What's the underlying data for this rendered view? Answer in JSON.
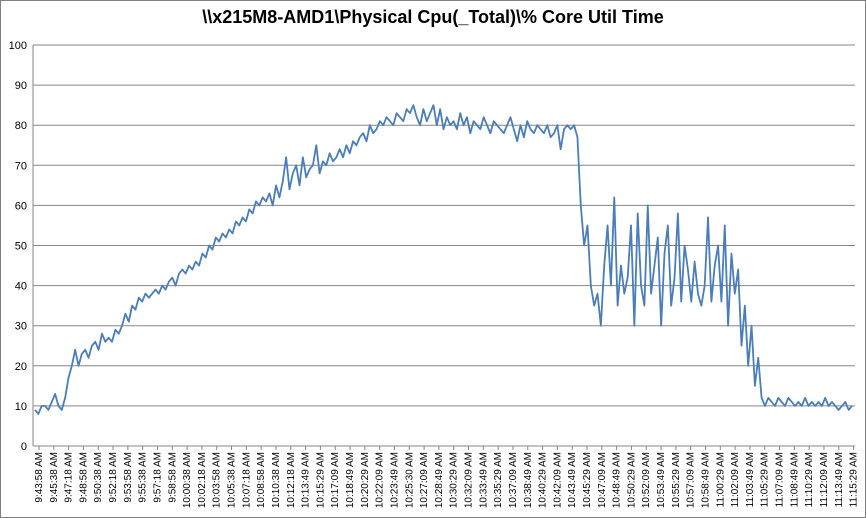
{
  "chart_data": {
    "type": "line",
    "title": "\\\\x215M8-AMD1\\Physical Cpu(_Total)\\% Core Util Time",
    "xlabel": "",
    "ylabel": "",
    "ylim": [
      0,
      100
    ],
    "yticks": [
      0,
      10,
      20,
      30,
      40,
      50,
      60,
      70,
      80,
      90,
      100
    ],
    "grid": true,
    "colors": {
      "line": "#4a7ebb",
      "grid": "#868686",
      "axis": "#868686"
    },
    "xtick_labels": [
      "9:43:58 AM",
      "9:45:38 AM",
      "9:47:18 AM",
      "9:48:58 AM",
      "9:50:38 AM",
      "9:52:18 AM",
      "9:53:58 AM",
      "9:55:38 AM",
      "9:57:18 AM",
      "9:58:58 AM",
      "10:00:38 AM",
      "10:02:18 AM",
      "10:03:58 AM",
      "10:05:38 AM",
      "10:07:18 AM",
      "10:08:58 AM",
      "10:10:38 AM",
      "10:12:18 AM",
      "10:13:49 AM",
      "10:15:29 AM",
      "10:17:09 AM",
      "10:18:49 AM",
      "10:20:29 AM",
      "10:22:09 AM",
      "10:23:49 AM",
      "10:25:30 AM",
      "10:27:09 AM",
      "10:28:49 AM",
      "10:30:29 AM",
      "10:32:09 AM",
      "10:33:49 AM",
      "10:35:29 AM",
      "10:37:09 AM",
      "10:38:49 AM",
      "10:40:29 AM",
      "10:42:09 AM",
      "10:43:49 AM",
      "10:45:29 AM",
      "10:47:09 AM",
      "10:48:49 AM",
      "10:50:29 AM",
      "10:52:09 AM",
      "10:53:49 AM",
      "10:55:29 AM",
      "10:57:09 AM",
      "10:58:49 AM",
      "11:00:29 AM",
      "11:02:09 AM",
      "11:03:49 AM",
      "11:05:29 AM",
      "11:07:09 AM",
      "11:08:49 AM",
      "11:10:29 AM",
      "11:12:09 AM",
      "11:13:49 AM",
      "11:15:29 AM"
    ],
    "series": [
      {
        "values": [
          9,
          8,
          10,
          10,
          9,
          11,
          13,
          10,
          9,
          12,
          17,
          20,
          24,
          20,
          23,
          24,
          22,
          25,
          26,
          24,
          28,
          26,
          27,
          26,
          29,
          28,
          30,
          33,
          31,
          35,
          34,
          37,
          36,
          38,
          37,
          38,
          39,
          38,
          40,
          39,
          41,
          42,
          40,
          43,
          44,
          43,
          45,
          44,
          46,
          45,
          48,
          47,
          50,
          49,
          52,
          51,
          53,
          52,
          54,
          53,
          56,
          55,
          57,
          56,
          59,
          58,
          61,
          60,
          62,
          61,
          63,
          60,
          65,
          62,
          66,
          72,
          64,
          68,
          70,
          65,
          72,
          67,
          69,
          70,
          75,
          68,
          71,
          70,
          73,
          71,
          72,
          74,
          72,
          75,
          73,
          76,
          75,
          77,
          78,
          76,
          80,
          78,
          79,
          81,
          80,
          82,
          81,
          80,
          83,
          82,
          81,
          84,
          83,
          85,
          82,
          80,
          84,
          81,
          83,
          85,
          80,
          84,
          79,
          82,
          80,
          81,
          79,
          83,
          80,
          82,
          78,
          81,
          80,
          79,
          82,
          80,
          78,
          81,
          80,
          79,
          78,
          80,
          82,
          79,
          76,
          80,
          77,
          81,
          79,
          78,
          80,
          79,
          78,
          80,
          77,
          78,
          80,
          74,
          79,
          80,
          79,
          80,
          77,
          60,
          50,
          55,
          40,
          35,
          38,
          30,
          45,
          55,
          40,
          62,
          35,
          45,
          38,
          42,
          55,
          30,
          58,
          40,
          35,
          60,
          38,
          45,
          52,
          30,
          48,
          55,
          35,
          42,
          58,
          36,
          50,
          44,
          36,
          46,
          38,
          35,
          40,
          57,
          36,
          45,
          50,
          36,
          55,
          30,
          48,
          38,
          44,
          25,
          35,
          20,
          30,
          15,
          22,
          12,
          10,
          12,
          11,
          10,
          12,
          11,
          10,
          12,
          11,
          10,
          11,
          10,
          12,
          10,
          11,
          10,
          11,
          10,
          12,
          10,
          11,
          10,
          9,
          10,
          11,
          9,
          10
        ]
      }
    ]
  }
}
